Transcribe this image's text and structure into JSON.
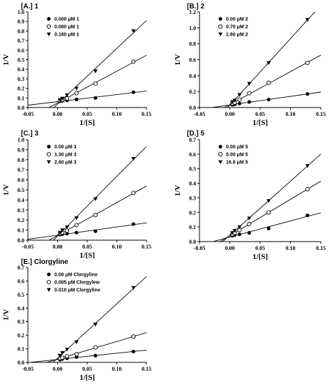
{
  "chart_data": [
    {
      "type": "scatter",
      "title": "[A.] 1",
      "xlabel": "1/[S]",
      "ylabel": "1/V",
      "xlim": [
        -0.05,
        0.15
      ],
      "ylim": [
        0,
        1.0
      ],
      "xticks": [
        "-0.05",
        "0.00",
        "0.05",
        "0.10",
        "0.15"
      ],
      "yticks": [
        "0.0",
        "0.1",
        "0.2",
        "0.3",
        "0.4",
        "0.5",
        "0.6",
        "0.7",
        "0.8",
        "0.9",
        "1.0"
      ],
      "legend_position": "top-left",
      "grid": false,
      "series": [
        {
          "name": "0.000 μM 1",
          "marker": "filled-circle",
          "x": [
            0.004,
            0.008,
            0.016,
            0.032,
            0.064,
            0.128
          ],
          "y": [
            0.065,
            0.07,
            0.075,
            0.085,
            0.1,
            0.16
          ]
        },
        {
          "name": "0.080 μM 1",
          "marker": "open-circle",
          "x": [
            0.004,
            0.008,
            0.016,
            0.032,
            0.064,
            0.128
          ],
          "y": [
            0.07,
            0.08,
            0.095,
            0.15,
            0.25,
            0.48
          ]
        },
        {
          "name": "0.160 μM 1",
          "marker": "filled-triangle",
          "x": [
            0.004,
            0.008,
            0.016,
            0.032,
            0.064,
            0.128
          ],
          "y": [
            0.08,
            0.095,
            0.13,
            0.2,
            0.38,
            0.8
          ]
        }
      ]
    },
    {
      "type": "scatter",
      "title": "[B.] 2",
      "xlabel": "1/[S]",
      "ylabel": "1/V",
      "xlim": [
        -0.05,
        0.15
      ],
      "ylim": [
        0,
        1.2
      ],
      "xticks": [
        "-0.05",
        "0.00",
        "0.05",
        "0.10",
        "0.15"
      ],
      "yticks": [
        "0.0",
        "0.2",
        "0.4",
        "0.6",
        "0.8",
        "1.0",
        "1.2"
      ],
      "legend_position": "top-left",
      "grid": false,
      "series": [
        {
          "name": "0.00 μM 2",
          "marker": "filled-circle",
          "x": [
            0.004,
            0.008,
            0.016,
            0.032,
            0.064,
            0.128
          ],
          "y": [
            0.035,
            0.04,
            0.05,
            0.07,
            0.1,
            0.17
          ]
        },
        {
          "name": "0.70 μM 2",
          "marker": "open-circle",
          "x": [
            0.004,
            0.008,
            0.016,
            0.032,
            0.064,
            0.128
          ],
          "y": [
            0.05,
            0.06,
            0.1,
            0.18,
            0.31,
            0.56
          ]
        },
        {
          "name": "1.60 μM 2",
          "marker": "filled-triangle",
          "x": [
            0.004,
            0.008,
            0.016,
            0.032,
            0.064,
            0.128
          ],
          "y": [
            0.07,
            0.09,
            0.16,
            0.3,
            0.56,
            1.1
          ]
        }
      ]
    },
    {
      "type": "scatter",
      "title": "[C.] 3",
      "xlabel": "1/[S]",
      "ylabel": "1/V",
      "xlim": [
        -0.05,
        0.15
      ],
      "ylim": [
        0,
        1.0
      ],
      "xticks": [
        "-0.05",
        "0.00",
        "0.05",
        "0.10",
        "0.15"
      ],
      "yticks": [
        "0.0",
        "0.1",
        "0.2",
        "0.3",
        "0.4",
        "0.5",
        "0.6",
        "0.7",
        "0.8",
        "0.9",
        "1.0"
      ],
      "legend_position": "top-left",
      "grid": false,
      "series": [
        {
          "name": "0.00 μM 3",
          "marker": "filled-circle",
          "x": [
            0.004,
            0.008,
            0.016,
            0.032,
            0.064,
            0.128
          ],
          "y": [
            0.055,
            0.06,
            0.065,
            0.075,
            0.09,
            0.16
          ]
        },
        {
          "name": "1.30 μM 3",
          "marker": "open-circle",
          "x": [
            0.004,
            0.008,
            0.016,
            0.032,
            0.064,
            0.128
          ],
          "y": [
            0.065,
            0.075,
            0.095,
            0.15,
            0.25,
            0.47
          ]
        },
        {
          "name": "2.60 μM 3",
          "marker": "filled-triangle",
          "x": [
            0.004,
            0.008,
            0.016,
            0.032,
            0.064,
            0.128
          ],
          "y": [
            0.075,
            0.1,
            0.13,
            0.22,
            0.41,
            0.81
          ]
        }
      ]
    },
    {
      "type": "scatter",
      "title": "[D.] 5",
      "xlabel": "1/[S]",
      "ylabel": "1/V",
      "xlim": [
        -0.05,
        0.15
      ],
      "ylim": [
        0,
        0.7
      ],
      "xticks": [
        "-0.05",
        "0.00",
        "0.05",
        "0.10",
        "0.15"
      ],
      "yticks": [
        "0.0",
        "0.1",
        "0.2",
        "0.3",
        "0.4",
        "0.5",
        "0.6",
        "0.7"
      ],
      "legend_position": "top-left",
      "grid": false,
      "series": [
        {
          "name": "0.00 μM 5",
          "marker": "filled-circle",
          "x": [
            0.004,
            0.008,
            0.016,
            0.032,
            0.064,
            0.128
          ],
          "y": [
            0.04,
            0.045,
            0.05,
            0.06,
            0.09,
            0.18
          ]
        },
        {
          "name": "5.00 μM 5",
          "marker": "open-circle",
          "x": [
            0.004,
            0.008,
            0.016,
            0.032,
            0.064,
            0.128
          ],
          "y": [
            0.05,
            0.06,
            0.08,
            0.12,
            0.2,
            0.36
          ]
        },
        {
          "name": "16.0 μM 5",
          "marker": "filled-triangle",
          "x": [
            0.004,
            0.008,
            0.016,
            0.032,
            0.064,
            0.128
          ],
          "y": [
            0.06,
            0.075,
            0.1,
            0.16,
            0.28,
            0.52
          ]
        }
      ]
    },
    {
      "type": "scatter",
      "title": "[E.] Clorgyline",
      "xlabel": "1/[S]",
      "ylabel": "1/V",
      "xlim": [
        -0.05,
        0.15
      ],
      "ylim": [
        0,
        0.7
      ],
      "xticks": [
        "-0.05",
        "0.00",
        "0.05",
        "0.10",
        "0.15"
      ],
      "yticks": [
        "0.0",
        "0.1",
        "0.2",
        "0.3",
        "0.4",
        "0.5",
        "0.6",
        "0.7"
      ],
      "legend_position": "top-left",
      "grid": false,
      "series": [
        {
          "name": "0.00 μM Clorgyline",
          "marker": "filled-circle",
          "x": [
            0.004,
            0.008,
            0.016,
            0.032,
            0.064,
            0.128
          ],
          "y": [
            0.02,
            0.025,
            0.03,
            0.04,
            0.05,
            0.08
          ]
        },
        {
          "name": "0.005 μM Clorgylew",
          "marker": "open-circle",
          "x": [
            0.004,
            0.008,
            0.016,
            0.032,
            0.064,
            0.128
          ],
          "y": [
            0.03,
            0.035,
            0.045,
            0.06,
            0.11,
            0.19
          ]
        },
        {
          "name": "0.010 μM Clorgyline",
          "marker": "filled-triangle",
          "x": [
            0.004,
            0.008,
            0.016,
            0.032,
            0.064,
            0.128
          ],
          "y": [
            0.05,
            0.07,
            0.095,
            0.15,
            0.28,
            0.55
          ]
        }
      ]
    }
  ]
}
